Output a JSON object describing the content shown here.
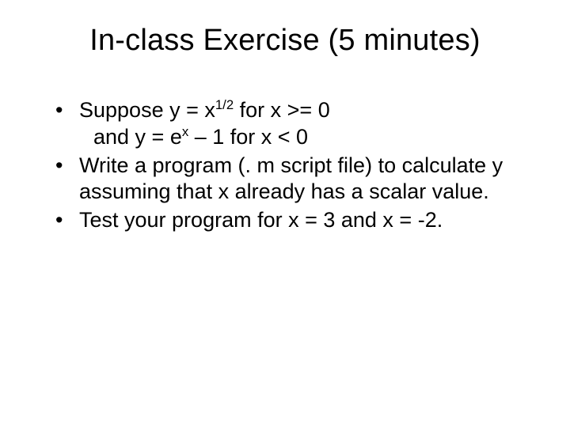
{
  "slide": {
    "background_color": "#ffffff",
    "text_color": "#000000",
    "font_family": "Arial",
    "title": {
      "text": "In-class Exercise (5 minutes)",
      "fontsize": 38,
      "weight": "normal",
      "align": "center"
    },
    "body": {
      "fontsize": 27,
      "line_height": 1.25,
      "bullet_char": "•",
      "items": [
        {
          "line1_pre": "Suppose y = x",
          "line1_sup": "1/2",
          "line1_post": " for x >= 0",
          "line2_pre": "and y = e",
          "line2_sup": "x",
          "line2_post": " – 1 for x < 0"
        },
        {
          "text": "Write a program (. m script file) to calculate y assuming that x already has a scalar value."
        },
        {
          "text": "Test your program for x = 3 and x = -2."
        }
      ]
    }
  }
}
